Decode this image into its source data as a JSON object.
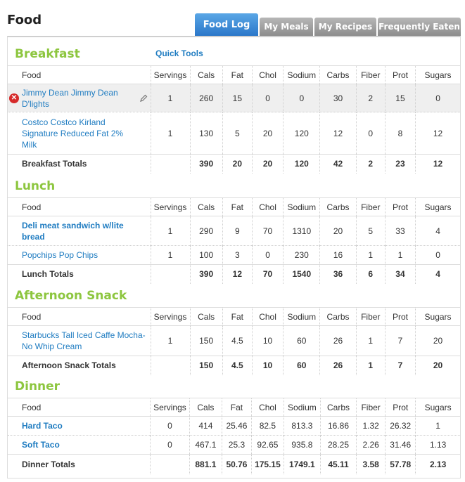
{
  "page": {
    "title": "Food"
  },
  "tabs": [
    {
      "label": "Food Log",
      "active": true
    },
    {
      "label": "My Meals",
      "active": false
    },
    {
      "label": "My Recipes",
      "active": false
    },
    {
      "label": "Frequently Eaten",
      "active": false
    }
  ],
  "quick_tools": "Quick Tools",
  "columns": [
    "Food",
    "Servings",
    "Cals",
    "Fat",
    "Chol",
    "Sodium",
    "Carbs",
    "Fiber",
    "Prot",
    "Sugars"
  ],
  "meals": [
    {
      "name": "Breakfast",
      "items": [
        {
          "food": "Jimmy Dean Jimmy Dean D'lights",
          "servings": "1",
          "cals": "260",
          "fat": "15",
          "chol": "0",
          "sodium": "0",
          "carbs": "30",
          "fiber": "2",
          "prot": "15",
          "sugars": "0"
        },
        {
          "food": "Costco Costco Kirland Signature Reduced Fat 2% Milk",
          "servings": "1",
          "cals": "130",
          "fat": "5",
          "chol": "20",
          "sodium": "120",
          "carbs": "12",
          "fiber": "0",
          "prot": "8",
          "sugars": "12"
        }
      ],
      "totals": {
        "label": "Breakfast Totals",
        "cals": "390",
        "fat": "20",
        "chol": "20",
        "sodium": "120",
        "carbs": "42",
        "fiber": "2",
        "prot": "23",
        "sugars": "12"
      }
    },
    {
      "name": "Lunch",
      "items": [
        {
          "food": "Deli meat sandwich w/lite bread",
          "servings": "1",
          "cals": "290",
          "fat": "9",
          "chol": "70",
          "sodium": "1310",
          "carbs": "20",
          "fiber": "5",
          "prot": "33",
          "sugars": "4"
        },
        {
          "food": "Popchips Pop Chips",
          "servings": "1",
          "cals": "100",
          "fat": "3",
          "chol": "0",
          "sodium": "230",
          "carbs": "16",
          "fiber": "1",
          "prot": "1",
          "sugars": "0"
        }
      ],
      "totals": {
        "label": "Lunch Totals",
        "cals": "390",
        "fat": "12",
        "chol": "70",
        "sodium": "1540",
        "carbs": "36",
        "fiber": "6",
        "prot": "34",
        "sugars": "4"
      }
    },
    {
      "name": "Afternoon Snack",
      "items": [
        {
          "food": "Starbucks Tall Iced Caffe Mocha- No Whip Cream",
          "servings": "1",
          "cals": "150",
          "fat": "4.5",
          "chol": "10",
          "sodium": "60",
          "carbs": "26",
          "fiber": "1",
          "prot": "7",
          "sugars": "20"
        }
      ],
      "totals": {
        "label": "Afternoon Snack Totals",
        "cals": "150",
        "fat": "4.5",
        "chol": "10",
        "sodium": "60",
        "carbs": "26",
        "fiber": "1",
        "prot": "7",
        "sugars": "20"
      }
    },
    {
      "name": "Dinner",
      "items": [
        {
          "food": "Hard Taco",
          "servings": "0",
          "cals": "414",
          "fat": "25.46",
          "chol": "82.5",
          "sodium": "813.3",
          "carbs": "16.86",
          "fiber": "1.32",
          "prot": "26.32",
          "sugars": "1"
        },
        {
          "food": "Soft Taco",
          "servings": "0",
          "cals": "467.1",
          "fat": "25.3",
          "chol": "92.65",
          "sodium": "935.8",
          "carbs": "28.25",
          "fiber": "2.26",
          "prot": "31.46",
          "sugars": "1.13"
        }
      ],
      "totals": {
        "label": "Dinner Totals",
        "cals": "881.1",
        "fat": "50.76",
        "chol": "175.15",
        "sodium": "1749.1",
        "carbs": "45.11",
        "fiber": "3.58",
        "prot": "57.78",
        "sugars": "2.13"
      }
    }
  ],
  "icons": {
    "delete": "delete-icon",
    "edit": "pencil-icon"
  },
  "colors": {
    "accent_green": "#8dc63f",
    "link_blue": "#1f7cc1",
    "tab_active": "#2b77c9",
    "tab_inactive": "#8d8d8d",
    "delete_red": "#d62a2a"
  }
}
